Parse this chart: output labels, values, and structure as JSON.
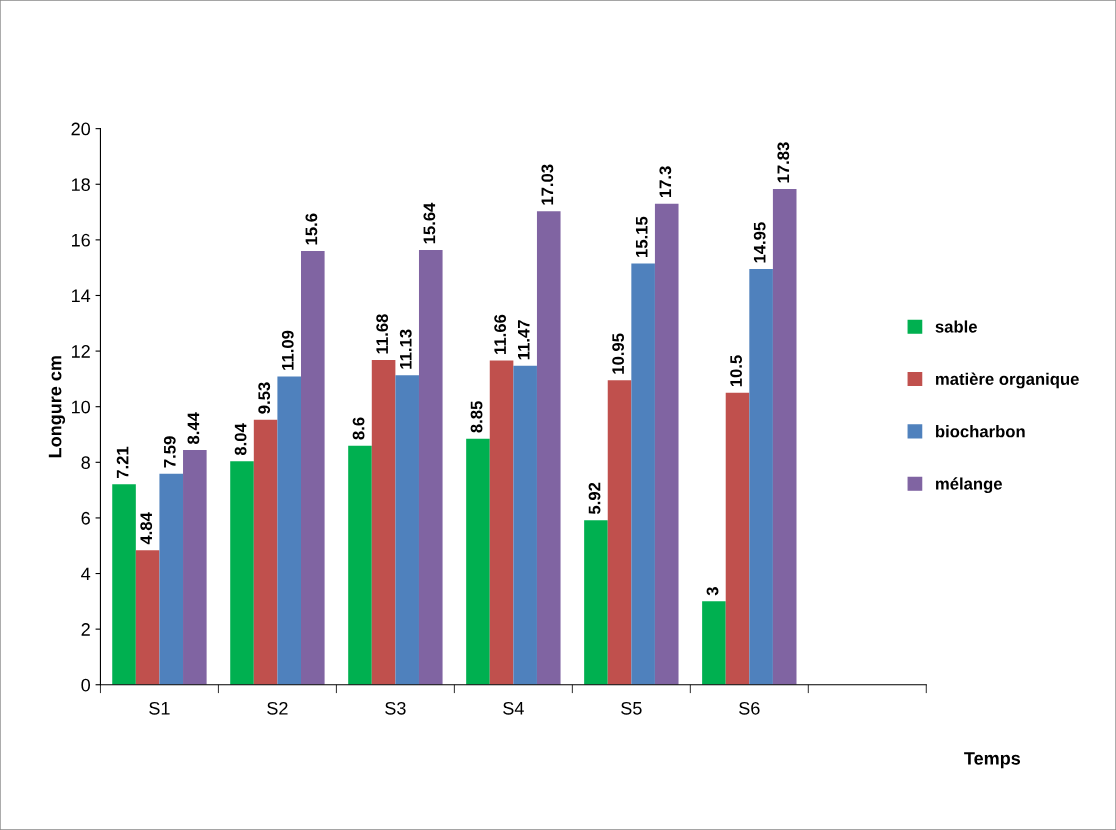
{
  "chart_data": {
    "type": "bar",
    "xlabel": "Temps",
    "ylabel": "Longure cm",
    "categories": [
      "S1",
      "S2",
      "S3",
      "S4",
      "S5",
      "S6",
      null
    ],
    "series": [
      {
        "name": "sable",
        "color": "#00b050",
        "values": [
          7.21,
          8.04,
          8.6,
          8.85,
          5.92,
          3,
          null
        ]
      },
      {
        "name": "matière organique",
        "color": "#c0504d",
        "values": [
          4.84,
          9.53,
          11.68,
          11.66,
          10.95,
          10.5,
          null
        ]
      },
      {
        "name": "biocharbon",
        "color": "#4f81bd",
        "values": [
          7.59,
          11.09,
          11.13,
          11.47,
          15.15,
          14.95,
          null
        ]
      },
      {
        "name": "mélange",
        "color": "#8064a2",
        "values": [
          8.44,
          15.6,
          15.64,
          17.03,
          17.3,
          17.83,
          null
        ]
      }
    ],
    "ylim": [
      0,
      20
    ],
    "yticks": [
      0,
      2,
      4,
      6,
      8,
      10,
      12,
      14,
      16,
      18,
      20
    ],
    "data_labels": true,
    "grid": false,
    "legend": "right"
  }
}
